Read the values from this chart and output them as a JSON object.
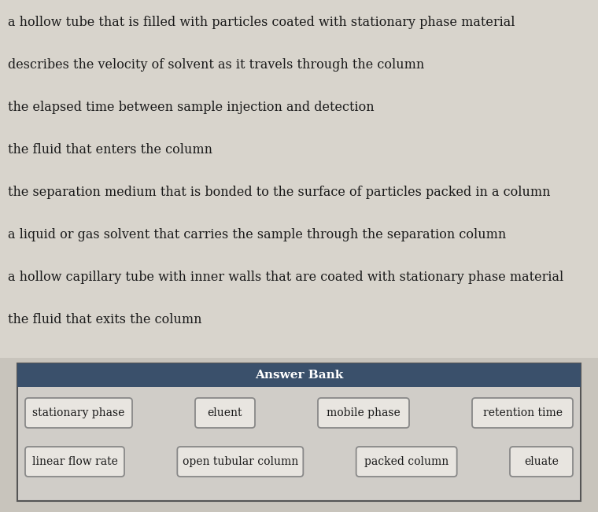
{
  "background_color": "#c8c4bc",
  "lines": [
    "a hollow tube that is filled with particles coated with stationary phase material",
    "describes the velocity of solvent as it travels through the column",
    "the elapsed time between sample injection and detection",
    "the fluid that enters the column",
    "the separation medium that is bonded to the surface of particles packed in a column",
    "a liquid or gas solvent that carries the sample through the separation column",
    "a hollow capillary tube with inner walls that are coated with stationary phase material",
    "the fluid that exits the column"
  ],
  "text_area_bg": "#dedad4",
  "answer_bank_title": "Answer Bank",
  "answer_bank_header_color": "#3a506b",
  "answer_bank_bg": "#d0cdc8",
  "answer_bank_border": "#555555",
  "answer_bank_title_color": "#ffffff",
  "row1_answers": [
    "stationary phase",
    "eluent",
    "mobile phase",
    "retention time"
  ],
  "row2_answers": [
    "linear flow rate",
    "open tubular column",
    "packed column",
    "eluate"
  ],
  "button_bg": "#e8e5e0",
  "button_border": "#888888",
  "text_color": "#1a1a1a",
  "font_size_lines": 11.5,
  "font_size_answers": 10,
  "font_size_header": 11
}
